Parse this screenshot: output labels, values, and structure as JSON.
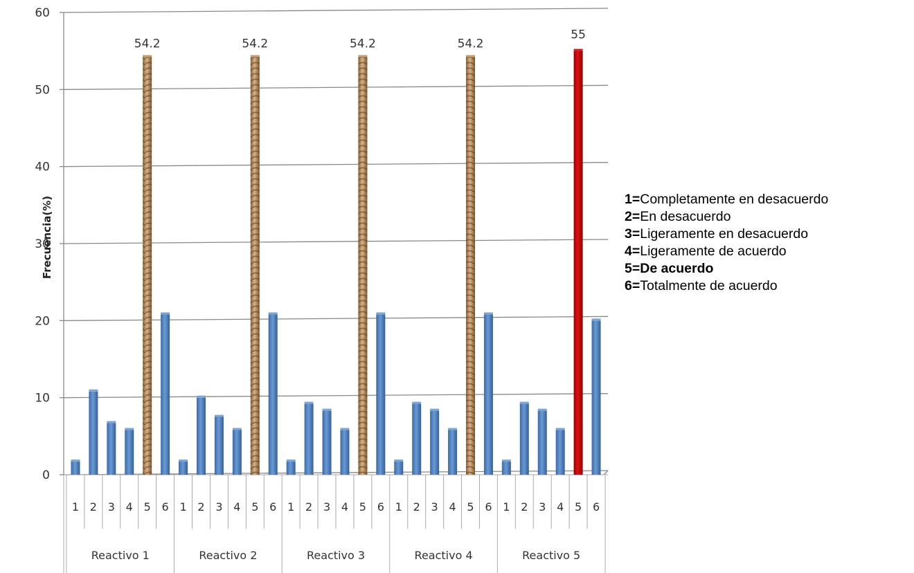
{
  "chart_data": {
    "type": "bar",
    "title": "",
    "xlabel": "",
    "ylabel": "Frecuencia(%)",
    "ylim": [
      0,
      60
    ],
    "yticks": [
      0,
      10,
      20,
      30,
      40,
      50,
      60
    ],
    "grid": true,
    "groups": [
      "Reactivo 1",
      "Reactivo 2",
      "Reactivo 3",
      "Reactivo 4",
      "Reactivo 5"
    ],
    "categories": [
      "1",
      "2",
      "3",
      "4",
      "5",
      "6"
    ],
    "values": [
      [
        1.7,
        10.8,
        6.7,
        5.8,
        54.2,
        20.8
      ],
      [
        1.7,
        10.0,
        7.5,
        5.8,
        54.2,
        20.8
      ],
      [
        1.7,
        9.2,
        8.3,
        5.8,
        54.2,
        20.8
      ],
      [
        1.7,
        9.2,
        8.3,
        5.8,
        54.2,
        20.8
      ],
      [
        1.7,
        9.2,
        8.3,
        5.8,
        55.0,
        20.0
      ]
    ],
    "data_labels": [
      {
        "group": 0,
        "category": 4,
        "text": "54.2"
      },
      {
        "group": 1,
        "category": 4,
        "text": "54.2"
      },
      {
        "group": 2,
        "category": 4,
        "text": "54.2"
      },
      {
        "group": 3,
        "category": 4,
        "text": "54.2"
      },
      {
        "group": 4,
        "category": 4,
        "text": "55"
      }
    ],
    "colors": {
      "default": "#4f81bd",
      "highlight": "#b08557",
      "max": "#c00000"
    },
    "legend": {
      "placement": "right",
      "items": [
        {
          "key": "1=",
          "text": "Completamente en desacuerdo"
        },
        {
          "key": "2=",
          "text": "En desacuerdo"
        },
        {
          "key": "3=",
          "text": "Ligeramente en desacuerdo"
        },
        {
          "key": "4=",
          "text": "Ligeramente de acuerdo"
        },
        {
          "key": "5=",
          "text": "De acuerdo"
        },
        {
          "key": "6=",
          "text": "Totalmente de acuerdo"
        }
      ]
    }
  }
}
